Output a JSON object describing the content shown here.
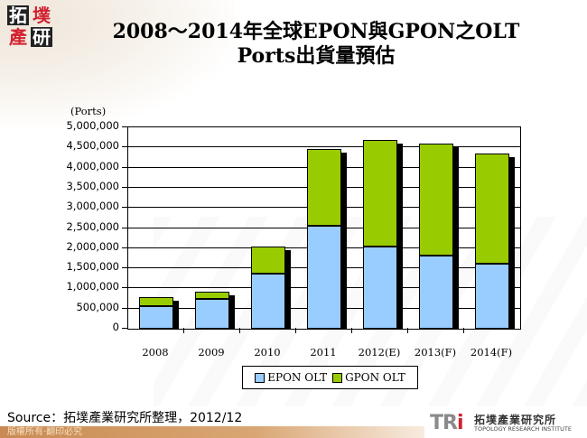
{
  "header": {
    "logo_chars": [
      "拓",
      "墣",
      "產",
      "研"
    ],
    "title_line1": "2008～2014年全球EPON與GPON之OLT",
    "title_line2": "Ports出貨量預估"
  },
  "chart_data": {
    "type": "bar",
    "stacked": true,
    "title": "2008～2014年全球EPON與GPON之OLT Ports出貨量預估",
    "xlabel": "",
    "ylabel": "(Ports)",
    "ylim": [
      0,
      5000000
    ],
    "yticks": [
      "0",
      "500,000",
      "1,000,000",
      "1,500,000",
      "2,000,000",
      "2,500,000",
      "3,000,000",
      "3,500,000",
      "4,000,000",
      "4,500,000",
      "5,000,000"
    ],
    "grid": true,
    "legend_position": "bottom",
    "categories": [
      "2008",
      "2009",
      "2010",
      "2011",
      "2012(E)",
      "2013(F)",
      "2014(F)"
    ],
    "series": [
      {
        "name": "EPON OLT",
        "color": "#99ccff",
        "values": [
          560000,
          740000,
          1370000,
          2560000,
          2040000,
          1820000,
          1610000
        ]
      },
      {
        "name": "GPON OLT",
        "color": "#99cc00",
        "values": [
          225000,
          180000,
          670000,
          1910000,
          2650000,
          2780000,
          2740000
        ]
      }
    ],
    "totals": [
      785000,
      920000,
      2040000,
      4470000,
      4690000,
      4600000,
      4350000
    ]
  },
  "legend": {
    "epon_label": "EPON OLT",
    "gpon_label": "GPON OLT"
  },
  "footer": {
    "source": "Source：拓墣產業研究所整理，2012/12",
    "copyright": "版權所有‧翻印必究",
    "tri_mark": "TR",
    "tri_i": "i",
    "tri_cn": "拓墣產業研究所",
    "tri_en": "TOPOLOGY RESEARCH INSTITUTE"
  }
}
